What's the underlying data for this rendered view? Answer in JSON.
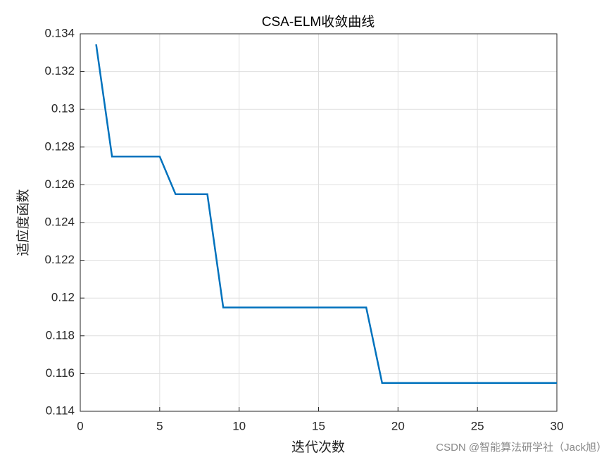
{
  "chart_data": {
    "type": "line",
    "title": "CSA-ELM收敛曲线",
    "x_label": "迭代次数",
    "y_label": "适应度函数",
    "x": [
      1,
      2,
      3,
      4,
      5,
      6,
      7,
      8,
      9,
      10,
      11,
      12,
      13,
      14,
      15,
      16,
      17,
      18,
      19,
      20,
      21,
      22,
      23,
      24,
      25,
      26,
      27,
      28,
      29,
      30
    ],
    "series": [
      {
        "name": "CSA-ELM",
        "color": "#0072bd",
        "values": [
          0.13344,
          0.1275,
          0.1275,
          0.1275,
          0.1275,
          0.1255,
          0.1255,
          0.1255,
          0.1195,
          0.1195,
          0.1195,
          0.1195,
          0.1195,
          0.1195,
          0.1195,
          0.1195,
          0.1195,
          0.1195,
          0.1155,
          0.1155,
          0.1155,
          0.1155,
          0.1155,
          0.1155,
          0.1155,
          0.1155,
          0.1155,
          0.1155,
          0.1155,
          0.1155
        ]
      }
    ],
    "xlim": [
      0,
      30
    ],
    "xticks": [
      0,
      5,
      10,
      15,
      20,
      25,
      30
    ],
    "ylim": [
      0.114,
      0.134
    ],
    "yticks": [
      0.114,
      0.116,
      0.118,
      0.12,
      0.122,
      0.124,
      0.126,
      0.128,
      0.13,
      0.132,
      0.134
    ],
    "grid": true,
    "watermark": "CSDN @智能算法研学社（Jack旭）"
  }
}
